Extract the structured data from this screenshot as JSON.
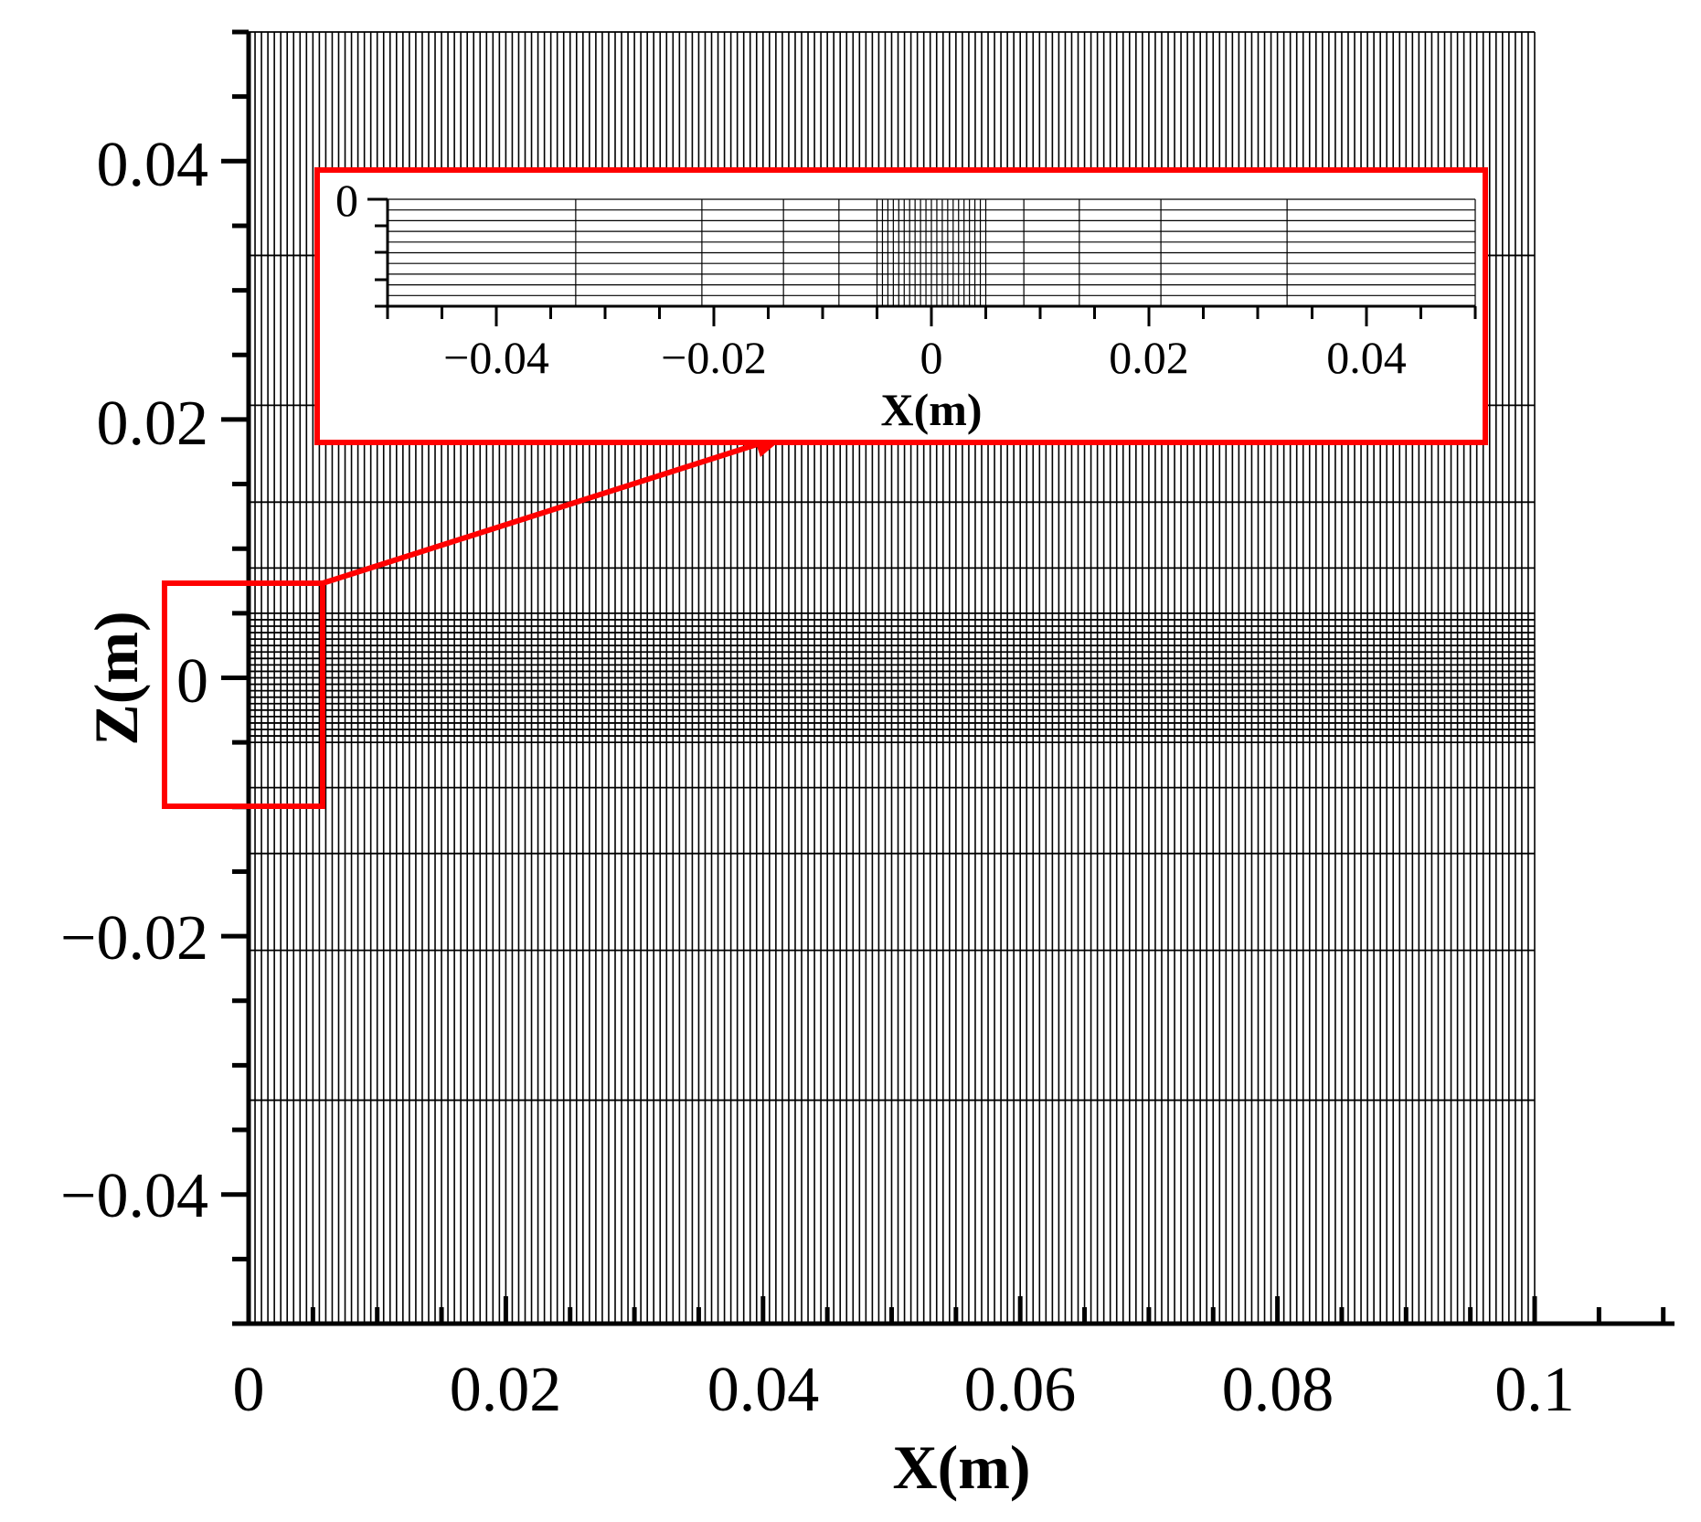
{
  "chart_data": {
    "type": "mesh",
    "xlabel": "X(m)",
    "ylabel": "Z(m)",
    "xlim": [
      0,
      0.1
    ],
    "ylim": [
      -0.05,
      0.05
    ],
    "x_ticks": [
      "0",
      "0.02",
      "0.04",
      "0.06",
      "0.08",
      "0.1"
    ],
    "y_ticks": [
      "0.04",
      "0.02",
      "0",
      "−0.02",
      "−0.04"
    ],
    "mesh": {
      "x_columns": 200,
      "z_lines": [
        -0.05,
        -0.0327,
        -0.0211,
        -0.0136,
        -0.0085,
        -0.005,
        -0.0045,
        -0.004,
        -0.0035,
        -0.003,
        -0.0025,
        -0.002,
        -0.0015,
        -0.001,
        -0.0005,
        0.0,
        0.0005,
        0.001,
        0.0015,
        0.002,
        0.0025,
        0.003,
        0.0035,
        0.004,
        0.0045,
        0.005,
        0.0085,
        0.0136,
        0.0211,
        0.0327,
        0.05
      ]
    },
    "inset": {
      "xlabel": "X(m)",
      "x_ticks": [
        "−0.04",
        "−0.02",
        "0",
        "0.02",
        "0.04"
      ],
      "y_ticks": [
        "0"
      ],
      "xlim": [
        -0.05,
        0.05
      ],
      "x_lines": [
        -0.05,
        -0.0327,
        -0.0211,
        -0.0136,
        -0.0085,
        -0.005,
        -0.0045,
        -0.004,
        -0.0035,
        -0.003,
        -0.0025,
        -0.002,
        -0.0015,
        -0.001,
        -0.0005,
        0.0,
        0.0005,
        0.001,
        0.0015,
        0.002,
        0.0025,
        0.003,
        0.0035,
        0.004,
        0.0045,
        0.005,
        0.0085,
        0.0136,
        0.0211,
        0.0327,
        0.05
      ],
      "z_rows": 10
    },
    "highlight_color": "#ff0000"
  }
}
